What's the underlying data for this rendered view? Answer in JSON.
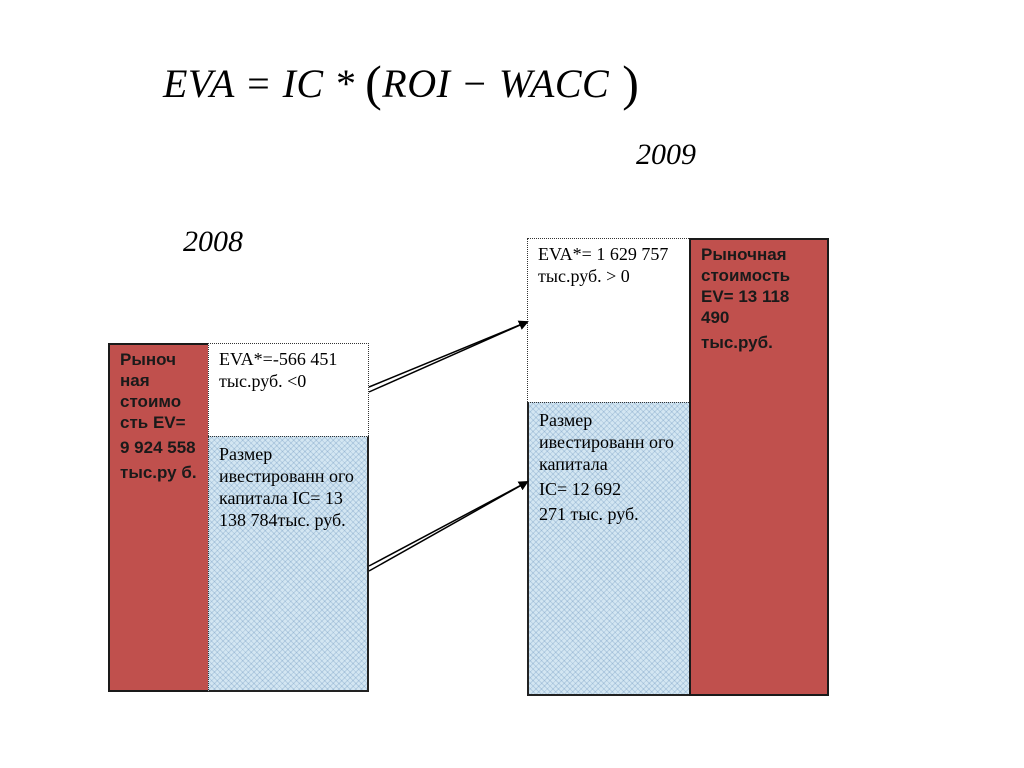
{
  "formula": {
    "lhs": "EVA",
    "eq": " = ",
    "ic": "IC",
    "mul": " * ",
    "open": "(",
    "roi": "ROI",
    "minus": " − ",
    "wacc": "WACC",
    "close": " )"
  },
  "year_2008": "2008",
  "year_2009": "2009",
  "y2008": {
    "ev": [
      "Рыноч ная стоимо сть EV=",
      "9 924 558",
      "тыс.ру б."
    ],
    "eva": "EVA*=-566 451 тыс.руб. <0",
    "ic": [
      "Размер ивестированн ого капитала IC= 13 138 784тыс. руб."
    ]
  },
  "y2009": {
    "eva": "EVA*= 1 629 757 тыс.руб. > 0",
    "ic": [
      "Размер ивестированн ого капитала",
      "IC= 12 692",
      "271 тыс. руб."
    ],
    "ev": [
      "Рыночная стоимость EV= 13 118 490",
      "тыс.руб."
    ]
  },
  "colors": {
    "ev_fill": "#c0504d",
    "ic_fill": "#d3e6f2",
    "arrow": "#000000"
  }
}
